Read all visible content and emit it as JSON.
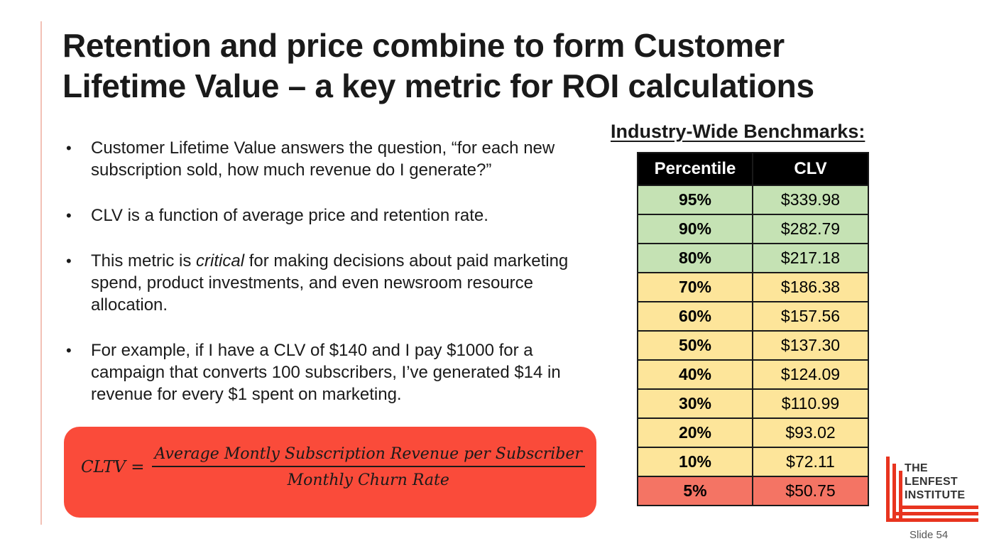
{
  "slide": {
    "title_line1": "Retention and price combine to form Customer",
    "title_line2": "Lifetime Value – a key metric for ROI calculations",
    "slide_number": "Slide 54"
  },
  "bullets": [
    {
      "text": "Customer Lifetime Value answers the question, “for each new subscription sold, how much revenue do I generate?”"
    },
    {
      "text": "CLV is a function of average price and retention rate."
    },
    {
      "before": "This metric is ",
      "emphasis": "critical",
      "after": " for making decisions about paid marketing spend, product investments, and even newsroom resource allocation."
    },
    {
      "text": "For example, if I have a CLV of $140 and I pay $1000 for a campaign that converts 100 subscribers, I’ve generated $14 in revenue for every $1 spent on marketing."
    }
  ],
  "formula": {
    "lhs": "CLTV =",
    "numerator": "Average Montly Subscription Revenue per Subscriber",
    "denominator": "Monthly Churn Rate"
  },
  "benchmarks": {
    "title": "Industry-Wide Benchmarks:",
    "headers": [
      "Percentile",
      "CLV"
    ],
    "rows": [
      {
        "percentile": "95%",
        "clv": "$339.98",
        "tier": "green"
      },
      {
        "percentile": "90%",
        "clv": "$282.79",
        "tier": "green"
      },
      {
        "percentile": "80%",
        "clv": "$217.18",
        "tier": "green"
      },
      {
        "percentile": "70%",
        "clv": "$186.38",
        "tier": "yellow"
      },
      {
        "percentile": "60%",
        "clv": "$157.56",
        "tier": "yellow"
      },
      {
        "percentile": "50%",
        "clv": "$137.30",
        "tier": "yellow"
      },
      {
        "percentile": "40%",
        "clv": "$124.09",
        "tier": "yellow"
      },
      {
        "percentile": "30%",
        "clv": "$110.99",
        "tier": "yellow"
      },
      {
        "percentile": "20%",
        "clv": "$93.02",
        "tier": "yellow"
      },
      {
        "percentile": "10%",
        "clv": "$72.11",
        "tier": "yellow"
      },
      {
        "percentile": "5%",
        "clv": "$50.75",
        "tier": "red"
      }
    ]
  },
  "logo": {
    "line1": "THE",
    "line2": "LENFEST",
    "line3": "INSTITUTE",
    "color": "#e8341f"
  },
  "colors": {
    "formula_box": "#fa4b3a",
    "tier_green": "#c5e2b4",
    "tier_yellow": "#fde59a",
    "tier_red": "#f47464"
  }
}
